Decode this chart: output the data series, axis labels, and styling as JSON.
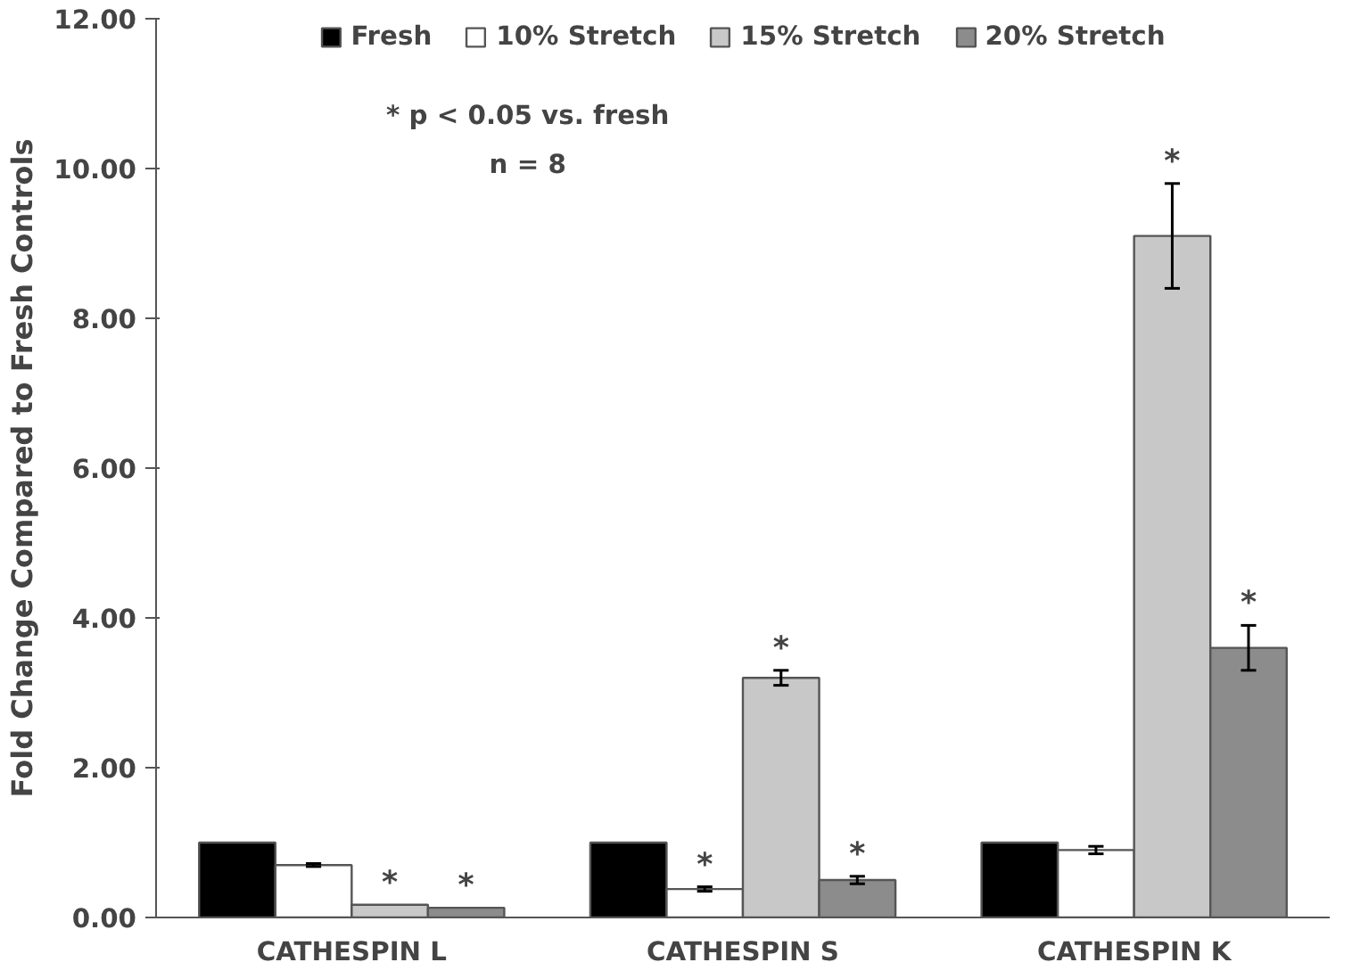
{
  "chart_data": {
    "type": "bar",
    "ylabel": "Fold Change Compared to Fresh Controls",
    "categories": [
      "CATHESPIN L",
      "CATHESPIN S",
      "CATHESPIN K"
    ],
    "series": [
      {
        "name": "Fresh",
        "color": "#000000",
        "values": [
          1.0,
          1.0,
          1.0
        ]
      },
      {
        "name": "10% Stretch",
        "color": "#ffffff",
        "values": [
          0.7,
          0.38,
          0.9
        ],
        "errors": [
          0.02,
          0.03,
          0.05
        ],
        "value_labels": [
          null,
          "*",
          null
        ]
      },
      {
        "name": "15% Stretch",
        "color": "#c8c8c8",
        "values": [
          0.17,
          3.2,
          9.1
        ],
        "errors": [
          null,
          0.1,
          0.7
        ],
        "value_labels": [
          "*",
          "*",
          "*"
        ]
      },
      {
        "name": "20% Stretch",
        "color": "#8c8c8c",
        "values": [
          0.13,
          0.5,
          3.6
        ],
        "errors": [
          null,
          0.05,
          0.3
        ],
        "value_labels": [
          "*",
          "*",
          "*"
        ]
      }
    ],
    "ylim": [
      0,
      12
    ],
    "yticks": [
      {
        "value": 0,
        "label": "0.00"
      },
      {
        "value": 2,
        "label": "2.00"
      },
      {
        "value": 4,
        "label": "4.00"
      },
      {
        "value": 6,
        "label": "6.00"
      },
      {
        "value": 8,
        "label": "8.00"
      },
      {
        "value": 10,
        "label": "10.00"
      },
      {
        "value": 12,
        "label": "12.00"
      }
    ],
    "annotations": [
      "* p < 0.05 vs. fresh",
      "n = 8"
    ],
    "legend": "top",
    "grid": false
  }
}
